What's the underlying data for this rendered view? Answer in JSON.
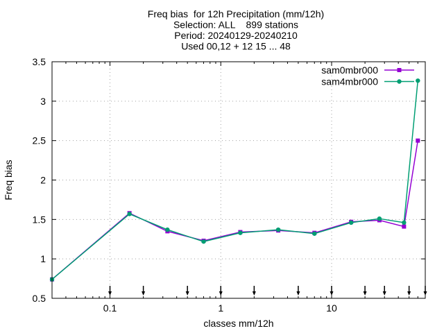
{
  "chart_data": {
    "type": "line",
    "title_lines": [
      "Freq bias  for 12h Precipitation (mm/12h)",
      "Selection: ALL    899 stations",
      "Period: 20240129-20240210",
      "Used 00,12 + 12 15 ... 48"
    ],
    "xlabel": "classes mm/12h",
    "ylabel": "Freq bias",
    "x_scale": "log",
    "xlim": [
      0.03,
      70
    ],
    "ylim": [
      0.5,
      3.5
    ],
    "x_ticks": [
      0.1,
      1,
      10
    ],
    "x_tick_labels": [
      "0.1",
      "1",
      "10"
    ],
    "y_ticks": [
      0.5,
      1,
      1.5,
      2,
      2.5,
      3,
      3.5
    ],
    "y_tick_labels": [
      "0.5",
      "1",
      "1.5",
      "2",
      "2.5",
      "3",
      "3.5"
    ],
    "grid": true,
    "legend_position": "top-right",
    "x": [
      0.03,
      0.15,
      0.33,
      0.7,
      1.5,
      3.3,
      7,
      15,
      27,
      45,
      60
    ],
    "series": [
      {
        "name": "sam0mbr000",
        "color": "#9400d3",
        "values": [
          0.74,
          1.58,
          1.35,
          1.23,
          1.34,
          1.36,
          1.33,
          1.47,
          1.49,
          1.41,
          2.5
        ]
      },
      {
        "name": "sam4mbr000",
        "color": "#009e73",
        "values": [
          0.74,
          1.57,
          1.37,
          1.22,
          1.33,
          1.37,
          1.32,
          1.46,
          1.51,
          1.46,
          3.26
        ]
      }
    ],
    "class_limits": [
      0.1,
      0.2,
      0.5,
      1,
      2,
      5,
      10,
      20,
      30,
      50,
      70
    ]
  }
}
